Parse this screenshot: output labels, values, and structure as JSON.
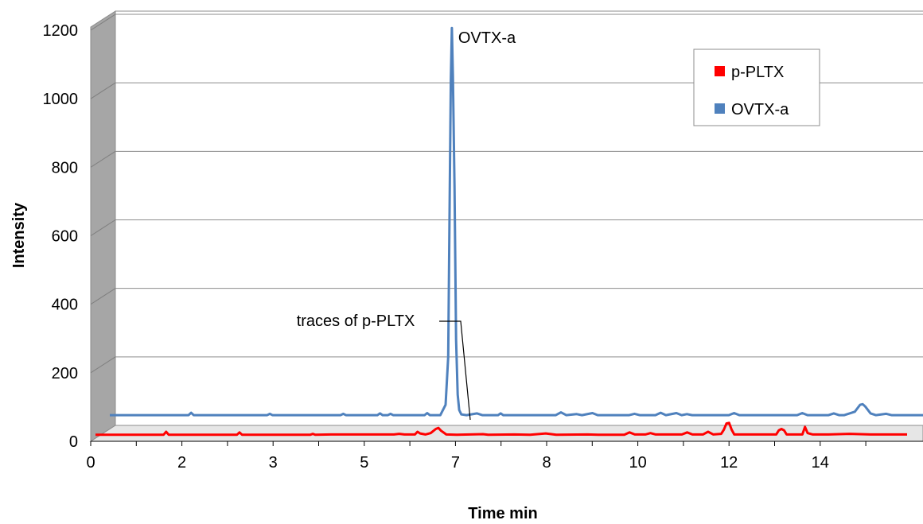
{
  "chart_data": {
    "type": "line",
    "xlabel": "Time min",
    "ylabel": "Intensity",
    "x_ticks": [
      "0",
      "2",
      "3",
      "5",
      "7",
      "8",
      "10",
      "12",
      "14"
    ],
    "y_ticks": [
      "0",
      "200",
      "400",
      "600",
      "800",
      "1000",
      "1200"
    ],
    "xlim": [
      0,
      15.5
    ],
    "ylim": [
      0,
      1200
    ],
    "grid": "horizontal",
    "style": "3d",
    "legend_position": "top-right",
    "series": [
      {
        "name": "p-PLTX",
        "color": "#ff0000",
        "points": [
          [
            0,
            5
          ],
          [
            1.3,
            5
          ],
          [
            1.35,
            14
          ],
          [
            1.4,
            5
          ],
          [
            2.7,
            5
          ],
          [
            2.75,
            12
          ],
          [
            2.8,
            5
          ],
          [
            4.1,
            5
          ],
          [
            4.15,
            8
          ],
          [
            4.2,
            5
          ],
          [
            4.5,
            6
          ],
          [
            4.7,
            6
          ],
          [
            5.0,
            6
          ],
          [
            5.7,
            6
          ],
          [
            5.8,
            8
          ],
          [
            5.9,
            6
          ],
          [
            6.1,
            6
          ],
          [
            6.15,
            14
          ],
          [
            6.2,
            9
          ],
          [
            6.3,
            6
          ],
          [
            6.4,
            10
          ],
          [
            6.5,
            22
          ],
          [
            6.55,
            25
          ],
          [
            6.6,
            17
          ],
          [
            6.7,
            6
          ],
          [
            6.9,
            5
          ],
          [
            7.4,
            7
          ],
          [
            7.5,
            5
          ],
          [
            8.0,
            6
          ],
          [
            8.3,
            5
          ],
          [
            8.6,
            9
          ],
          [
            8.8,
            5
          ],
          [
            9.4,
            6
          ],
          [
            9.6,
            5
          ],
          [
            10.1,
            5
          ],
          [
            10.2,
            12
          ],
          [
            10.3,
            6
          ],
          [
            10.5,
            6
          ],
          [
            10.6,
            10
          ],
          [
            10.7,
            6
          ],
          [
            11.2,
            6
          ],
          [
            11.3,
            12
          ],
          [
            11.4,
            6
          ],
          [
            11.6,
            6
          ],
          [
            11.7,
            14
          ],
          [
            11.8,
            6
          ],
          [
            11.95,
            8
          ],
          [
            12.0,
            20
          ],
          [
            12.05,
            38
          ],
          [
            12.1,
            40
          ],
          [
            12.15,
            20
          ],
          [
            12.2,
            6
          ],
          [
            12.8,
            6
          ],
          [
            13.0,
            6
          ],
          [
            13.05,
            18
          ],
          [
            13.1,
            22
          ],
          [
            13.15,
            18
          ],
          [
            13.2,
            6
          ],
          [
            13.5,
            6
          ],
          [
            13.55,
            28
          ],
          [
            13.6,
            10
          ],
          [
            13.7,
            6
          ],
          [
            14.0,
            6
          ],
          [
            14.4,
            8
          ],
          [
            14.8,
            6
          ],
          [
            15.5,
            6
          ]
        ]
      },
      {
        "name": "OVTX-a",
        "color": "#4f81bd",
        "points": [
          [
            0,
            30
          ],
          [
            1.5,
            30
          ],
          [
            1.55,
            37
          ],
          [
            1.6,
            30
          ],
          [
            3.0,
            30
          ],
          [
            3.05,
            34
          ],
          [
            3.1,
            30
          ],
          [
            4.4,
            30
          ],
          [
            4.45,
            34
          ],
          [
            4.5,
            30
          ],
          [
            5.1,
            30
          ],
          [
            5.15,
            35
          ],
          [
            5.2,
            30
          ],
          [
            5.3,
            30
          ],
          [
            5.35,
            34
          ],
          [
            5.4,
            30
          ],
          [
            6.0,
            30
          ],
          [
            6.05,
            36
          ],
          [
            6.1,
            30
          ],
          [
            6.3,
            30
          ],
          [
            6.4,
            60
          ],
          [
            6.45,
            200
          ],
          [
            6.48,
            700
          ],
          [
            6.5,
            1010
          ],
          [
            6.52,
            1160
          ],
          [
            6.54,
            1020
          ],
          [
            6.57,
            700
          ],
          [
            6.6,
            250
          ],
          [
            6.63,
            90
          ],
          [
            6.66,
            45
          ],
          [
            6.7,
            32
          ],
          [
            6.8,
            30
          ],
          [
            7.0,
            35
          ],
          [
            7.1,
            30
          ],
          [
            7.4,
            30
          ],
          [
            7.45,
            35
          ],
          [
            7.5,
            30
          ],
          [
            8.5,
            30
          ],
          [
            8.6,
            38
          ],
          [
            8.7,
            30
          ],
          [
            8.9,
            33
          ],
          [
            9.0,
            30
          ],
          [
            9.2,
            36
          ],
          [
            9.3,
            30
          ],
          [
            9.9,
            30
          ],
          [
            10.0,
            34
          ],
          [
            10.1,
            30
          ],
          [
            10.4,
            30
          ],
          [
            10.5,
            37
          ],
          [
            10.6,
            30
          ],
          [
            10.8,
            36
          ],
          [
            10.9,
            30
          ],
          [
            11.0,
            33
          ],
          [
            11.1,
            30
          ],
          [
            11.8,
            30
          ],
          [
            11.9,
            36
          ],
          [
            12.0,
            30
          ],
          [
            13.1,
            30
          ],
          [
            13.2,
            36
          ],
          [
            13.3,
            30
          ],
          [
            13.7,
            30
          ],
          [
            13.8,
            35
          ],
          [
            13.9,
            30
          ],
          [
            14.0,
            30
          ],
          [
            14.2,
            40
          ],
          [
            14.3,
            60
          ],
          [
            14.35,
            62
          ],
          [
            14.4,
            55
          ],
          [
            14.5,
            35
          ],
          [
            14.6,
            30
          ],
          [
            14.8,
            34
          ],
          [
            14.9,
            30
          ],
          [
            15.5,
            30
          ]
        ]
      }
    ],
    "annotations": [
      {
        "text": "OVTX-a"
      },
      {
        "text": "traces of p-PLTX"
      }
    ]
  }
}
